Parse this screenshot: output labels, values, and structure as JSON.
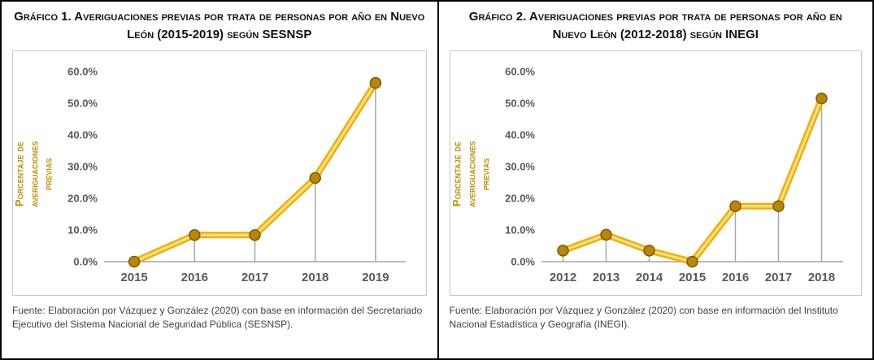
{
  "chart_data": [
    {
      "type": "line",
      "title": "Gráfico 1. Averiguaciones previas por trata de personas por año en Nuevo León (2015-2019) según SESNSP",
      "ylabel": "Porcentaje de averiguaciones previas",
      "xlabel": "",
      "categories": [
        "2015",
        "2016",
        "2017",
        "2018",
        "2019"
      ],
      "values": [
        0.0,
        8.4,
        8.4,
        26.4,
        56.4
      ],
      "ylim": [
        0,
        60
      ],
      "ytick_step": 10,
      "ytick_suffix": "%",
      "grid": false,
      "legend": "none",
      "source": "Fuente: Elaboración por Vázquez y González (2020) con base en información del Secretariado Ejecutivo del Sistema Nacional de Seguridad Pública (SESNSP)."
    },
    {
      "type": "line",
      "title": "Gráfico 2. Averiguaciones previas por trata de personas por año en Nuevo León (2012-2018) según INEGI",
      "ylabel": "Porcentaje de averiguaciones previas",
      "xlabel": "",
      "categories": [
        "2012",
        "2013",
        "2014",
        "2015",
        "2016",
        "2017",
        "2018"
      ],
      "values": [
        3.5,
        8.5,
        3.5,
        0.0,
        17.5,
        17.5,
        51.5
      ],
      "ylim": [
        0,
        60
      ],
      "ytick_step": 10,
      "ytick_suffix": "%",
      "grid": false,
      "legend": "none",
      "source": "Fuente: Elaboración por Vázquez y González (2020) con base en información del Instituto Nacional Estadística y Geografía (INEGI)."
    }
  ],
  "colors": {
    "line_outer": "#EFAE00",
    "line_inner": "#FFDF80",
    "marker_fill": "#B8860B",
    "marker_stroke": "#7A5C00",
    "axis_text": "#595959",
    "ylabel_text": "#BF8F00",
    "stem": "#A6A6A6",
    "baseline": "#A6A6A6",
    "chart_border": "#C9C9C9"
  }
}
